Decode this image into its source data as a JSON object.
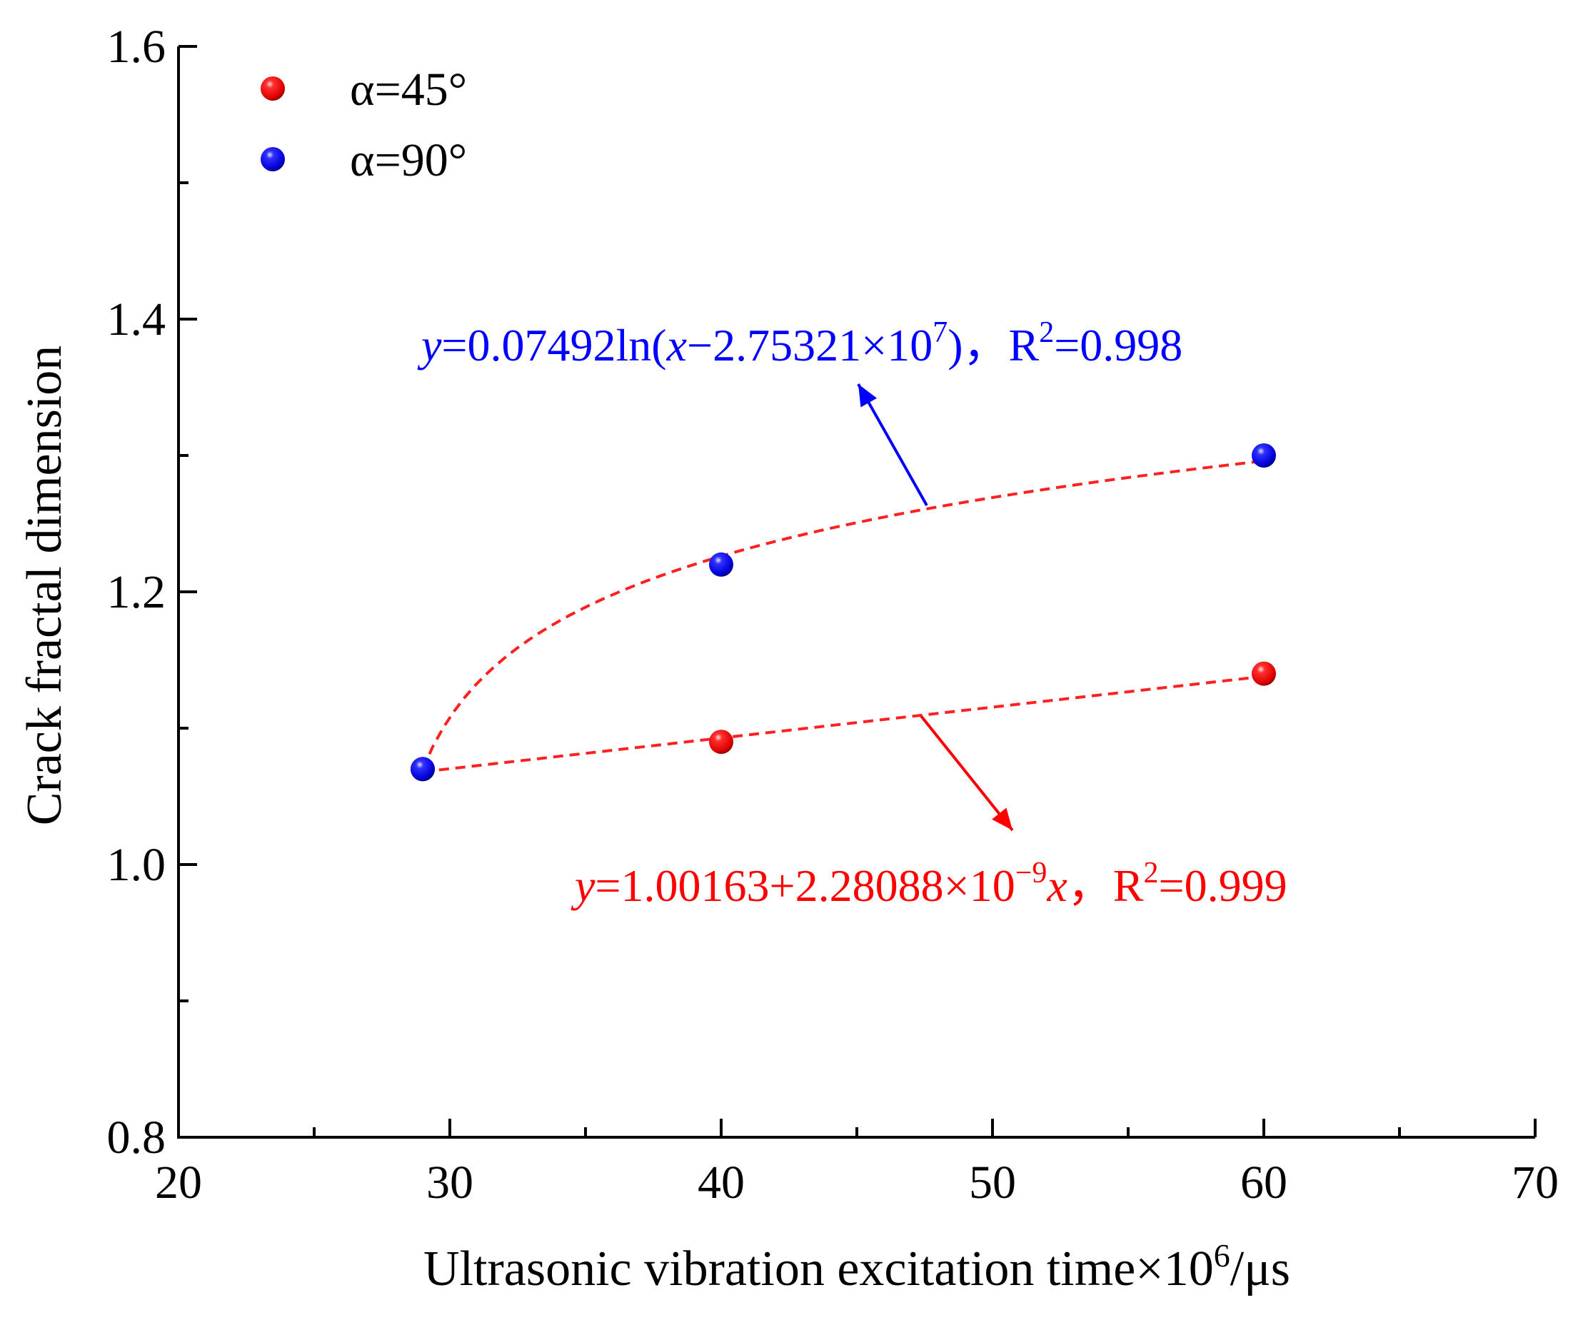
{
  "chart_data": {
    "type": "scatter",
    "title": "",
    "xlabel": {
      "main": "Ultrasonic vibration excitation time×10",
      "sup": "6",
      "unit": "/μs"
    },
    "ylabel": "Crack fractal dimension",
    "xlim": [
      20,
      70
    ],
    "ylim": [
      0.8,
      1.6
    ],
    "x_ticks": [
      20,
      30,
      40,
      50,
      60,
      70
    ],
    "x_tick_labels": [
      "20",
      "30",
      "40",
      "50",
      "60",
      "70"
    ],
    "x_minor_ticks": [
      25,
      35,
      45,
      55,
      65
    ],
    "y_ticks": [
      0.8,
      1.0,
      1.2,
      1.4,
      1.6
    ],
    "y_tick_labels": [
      "0.8",
      "1.0",
      "1.2",
      "1.4",
      "1.6"
    ],
    "y_minor_ticks": [
      0.9,
      1.1,
      1.3,
      1.5
    ],
    "legend_position": "top-left",
    "series": [
      {
        "name": "α=45°",
        "color": "#ff0000",
        "x": [
          29,
          40,
          60
        ],
        "y": [
          1.07,
          1.09,
          1.14
        ],
        "fit": {
          "type": "linear",
          "color": "#ff2020",
          "x_range": [
            29,
            60
          ],
          "y_start": 1.068,
          "y_end": 1.138,
          "arrow_color": "#ff0000",
          "equation": {
            "parts": [
              {
                "t": "y",
                "italic": true
              },
              {
                "t": "=1.00163+2.28088×10"
              },
              {
                "t": "−9",
                "sup": true
              },
              {
                "t": "x",
                "italic": true
              },
              {
                "t": "，R"
              },
              {
                "t": "2",
                "sup": true
              },
              {
                "t": "=0.999"
              }
            ]
          }
        }
      },
      {
        "name": "α=90°",
        "color": "#0000ff",
        "x": [
          29,
          40,
          60
        ],
        "y": [
          1.07,
          1.22,
          1.3
        ],
        "fit": {
          "type": "log",
          "color": "#ff2020",
          "x_range": [
            29,
            60
          ],
          "x0": 27.5321,
          "y_at_29": 1.07,
          "y_at_60": 1.296,
          "arrow_color": "#0000ff",
          "equation": {
            "parts": [
              {
                "t": "y",
                "italic": true
              },
              {
                "t": "=0.07492ln("
              },
              {
                "t": "x",
                "italic": true
              },
              {
                "t": "−2.75321×10"
              },
              {
                "t": "7",
                "sup": true
              },
              {
                "t": ")，R"
              },
              {
                "t": "2",
                "sup": true
              },
              {
                "t": "=0.998"
              }
            ]
          }
        }
      }
    ]
  }
}
